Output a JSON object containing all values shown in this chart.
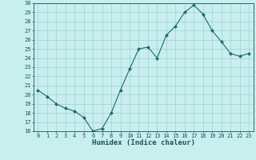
{
  "x": [
    0,
    1,
    2,
    3,
    4,
    5,
    6,
    7,
    8,
    9,
    10,
    11,
    12,
    13,
    14,
    15,
    16,
    17,
    18,
    19,
    20,
    21,
    22,
    23
  ],
  "y": [
    20.5,
    19.8,
    19.0,
    18.5,
    18.2,
    17.5,
    16.0,
    16.3,
    18.0,
    20.5,
    22.8,
    25.0,
    25.2,
    24.0,
    26.5,
    27.5,
    29.0,
    29.8,
    28.8,
    27.0,
    25.8,
    24.5,
    24.2,
    24.5
  ],
  "xlabel": "Humidex (Indice chaleur)",
  "ylim": [
    16,
    30
  ],
  "xlim": [
    -0.5,
    23.5
  ],
  "yticks": [
    16,
    17,
    18,
    19,
    20,
    21,
    22,
    23,
    24,
    25,
    26,
    27,
    28,
    29,
    30
  ],
  "xticks": [
    0,
    1,
    2,
    3,
    4,
    5,
    6,
    7,
    8,
    9,
    10,
    11,
    12,
    13,
    14,
    15,
    16,
    17,
    18,
    19,
    20,
    21,
    22,
    23
  ],
  "line_color": "#1a6b6b",
  "marker_color": "#1a6b6b",
  "bg_color": "#c8eeee",
  "grid_color": "#a0d0d0",
  "tick_label_color": "#1a5555",
  "xlabel_color": "#1a5555",
  "tick_fontsize": 5.0,
  "xlabel_fontsize": 6.5,
  "marker_size": 2.0,
  "line_width": 0.8
}
